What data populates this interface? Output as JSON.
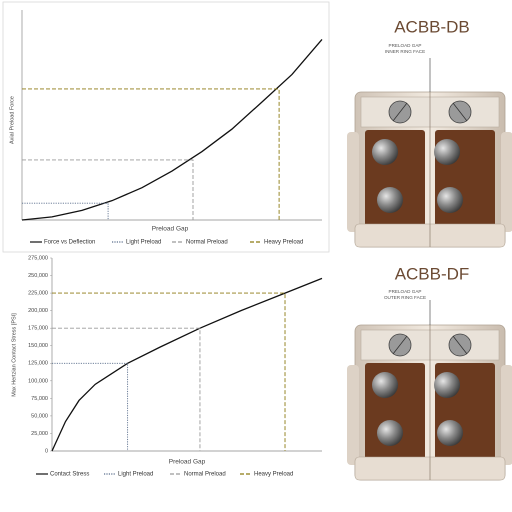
{
  "chart_data": [
    {
      "type": "line",
      "x_label": "Preload Gap",
      "y_label": "Axial Preload Force",
      "xlim": [
        0,
        100
      ],
      "ylim": [
        0,
        100
      ],
      "frame": true,
      "series": [
        {
          "name": "Force vs Deflection",
          "color": "#111111",
          "style": "solid",
          "x": [
            0,
            10,
            20,
            30,
            40,
            50,
            60,
            70,
            80,
            90,
            100
          ],
          "values": [
            0,
            1.5,
            4.6,
            9.2,
            15.4,
            23.3,
            32.6,
            43.3,
            56.2,
            69.3,
            86
          ]
        },
        {
          "name": "Light Preload",
          "color": "#5a6e8c",
          "style": "dotted",
          "x": [
            0,
            28.7,
            28.7
          ],
          "values": [
            8,
            8,
            0
          ]
        },
        {
          "name": "Normal Preload",
          "color": "#9a9a9a",
          "style": "dashed",
          "x": [
            0,
            57,
            57
          ],
          "values": [
            28.6,
            28.6,
            0
          ]
        },
        {
          "name": "Heavy Preload",
          "color": "#8c7a12",
          "style": "dashed",
          "x": [
            0,
            85.7,
            85.7
          ],
          "values": [
            62.4,
            62.4,
            0
          ]
        }
      ]
    },
    {
      "type": "line",
      "x_label": "Preload Gap",
      "y_label": "Max Hertzian Contact Stress [PSI]",
      "xlim": [
        0,
        100
      ],
      "ylim": [
        0,
        275000
      ],
      "frame": false,
      "yticks": [
        0,
        {
          "value": 25000,
          "label": "25,000"
        },
        {
          "value": 50000,
          "label": "50,000"
        },
        {
          "value": 75000,
          "label": "75,000"
        },
        {
          "value": 100000,
          "label": "100,000"
        },
        {
          "value": 125000,
          "label": "125,000"
        },
        {
          "value": 150000,
          "label": "150,000"
        },
        {
          "value": 175000,
          "label": "175,000"
        },
        {
          "value": 200000,
          "label": "200,000"
        },
        {
          "value": 225000,
          "label": "225,000"
        },
        {
          "value": 250000,
          "label": "250,000"
        },
        {
          "value": 275000,
          "label": "275,000"
        }
      ],
      "series": [
        {
          "name": "Contact Stress",
          "color": "#111111",
          "style": "solid",
          "x": [
            0,
            5,
            10,
            16,
            28,
            40,
            54.8,
            70,
            86.3,
            100
          ],
          "values": [
            0,
            42000,
            72000,
            95000,
            125000,
            148000,
            175000,
            200000,
            225000,
            246000
          ]
        },
        {
          "name": "Light Preload",
          "color": "#5a6e8c",
          "style": "dotted",
          "x": [
            0,
            28,
            28
          ],
          "values": [
            125000,
            125000,
            0
          ]
        },
        {
          "name": "Normal Preload",
          "color": "#9a9a9a",
          "style": "dashed",
          "x": [
            0,
            54.8,
            54.8
          ],
          "values": [
            175000,
            175000,
            0
          ]
        },
        {
          "name": "Heavy Preload",
          "color": "#8c7a12",
          "style": "dashed",
          "x": [
            0,
            86.3,
            86.3
          ],
          "values": [
            225000,
            225000,
            0
          ]
        }
      ]
    }
  ],
  "diagrams": [
    {
      "title": "ACBB-DB",
      "caption": [
        "PRELOAD GAP",
        "INNER RING FACE"
      ]
    },
    {
      "title": "ACBB-DF",
      "caption": [
        "PRELOAD GAP",
        "OUTER RING FACE"
      ]
    }
  ]
}
